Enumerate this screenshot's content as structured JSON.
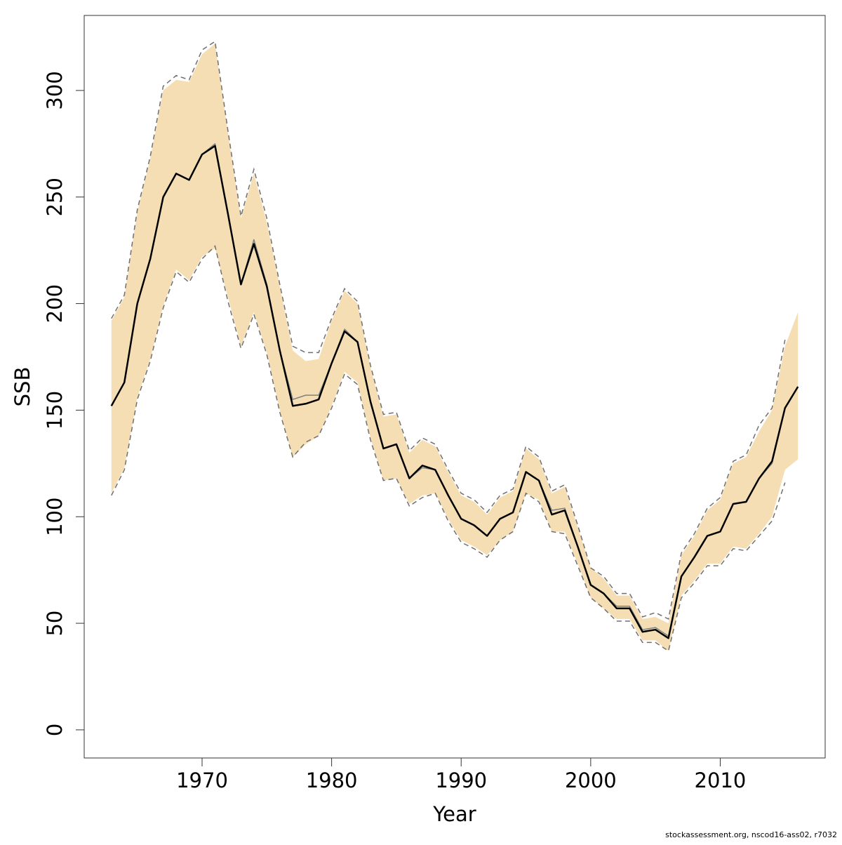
{
  "chart_data": {
    "type": "line",
    "xlabel": "Year",
    "ylabel": "SSB",
    "footer": "stockassessment.org, nscod16-ass02, r7032",
    "x": [
      1963,
      1964,
      1965,
      1966,
      1967,
      1968,
      1969,
      1970,
      1971,
      1972,
      1973,
      1974,
      1975,
      1976,
      1977,
      1978,
      1979,
      1980,
      1981,
      1982,
      1983,
      1984,
      1985,
      1986,
      1987,
      1988,
      1989,
      1990,
      1991,
      1992,
      1993,
      1994,
      1995,
      1996,
      1997,
      1998,
      1999,
      2000,
      2001,
      2002,
      2003,
      2004,
      2005,
      2006,
      2007,
      2008,
      2009,
      2010,
      2011,
      2012,
      2013,
      2014,
      2015,
      2016
    ],
    "interval": {
      "color": "#f5deb3",
      "upper": [
        192,
        203,
        243,
        268,
        300,
        305,
        304,
        317,
        322,
        280,
        240,
        261,
        238,
        208,
        178,
        173,
        174,
        192,
        206,
        200,
        170,
        147,
        148,
        130,
        136,
        133,
        121,
        110,
        107,
        101,
        109,
        112,
        132,
        127,
        111,
        114,
        95,
        76,
        71,
        63,
        63,
        52,
        53,
        50,
        82,
        91,
        103,
        108,
        125,
        128,
        140,
        150,
        180,
        196
      ],
      "lower": [
        111,
        123,
        156,
        174,
        199,
        216,
        211,
        222,
        226,
        203,
        180,
        196,
        177,
        150,
        128,
        134,
        138,
        152,
        168,
        163,
        137,
        117,
        118,
        106,
        110,
        111,
        99,
        89,
        86,
        82,
        89,
        93,
        111,
        108,
        93,
        93,
        78,
        62,
        57,
        52,
        52,
        42,
        42,
        37,
        63,
        70,
        78,
        78,
        86,
        85,
        92,
        100,
        122,
        127
      ]
    },
    "previous_interval": {
      "color": "#707070",
      "dash": true,
      "upper": [
        193,
        204,
        244,
        269,
        302,
        307,
        305,
        319,
        323,
        281,
        241,
        263,
        240,
        209,
        180,
        177,
        177,
        193,
        207,
        201,
        171,
        148,
        149,
        131,
        137,
        134,
        122,
        111,
        108,
        102,
        110,
        113,
        133,
        128,
        112,
        115,
        96,
        76,
        72,
        64,
        64,
        53,
        55,
        52,
        83,
        92,
        104,
        109,
        126,
        129,
        143,
        151,
        183,
        null
      ],
      "lower": [
        110,
        122,
        155,
        173,
        198,
        215,
        210,
        221,
        227,
        201,
        179,
        195,
        176,
        149,
        128,
        135,
        138,
        151,
        167,
        162,
        136,
        117,
        118,
        105,
        109,
        111,
        98,
        88,
        85,
        81,
        89,
        93,
        111,
        107,
        93,
        92,
        77,
        62,
        57,
        51,
        51,
        41,
        41,
        37,
        62,
        69,
        77,
        77,
        85,
        84,
        91,
        98,
        116,
        null
      ]
    },
    "series": [
      {
        "color": "#808080",
        "width": 1.5,
        "values": [
          152,
          163,
          200,
          221,
          250,
          261,
          258,
          270,
          275,
          242,
          209,
          230,
          209,
          178,
          155,
          157,
          157,
          172,
          188,
          182,
          154,
          132,
          134,
          118,
          123,
          122,
          110,
          99,
          96,
          91,
          99,
          102,
          121,
          117,
          103,
          104,
          86,
          68,
          64,
          58,
          58,
          47,
          48,
          44,
          72,
          81,
          91,
          93,
          106,
          107,
          118,
          125,
          151,
          null
        ]
      },
      {
        "color": "#000000",
        "width": 2.5,
        "values": [
          152,
          163,
          200,
          221,
          250,
          261,
          258,
          270,
          274,
          242,
          209,
          228,
          208,
          178,
          152,
          153,
          155,
          172,
          187,
          182,
          154,
          132,
          134,
          118,
          124,
          122,
          110,
          99,
          96,
          91,
          99,
          102,
          121,
          117,
          101,
          103,
          86,
          68,
          64,
          57,
          57,
          46,
          47,
          43,
          72,
          81,
          91,
          93,
          106,
          107,
          118,
          126,
          151,
          161
        ]
      }
    ],
    "xlim": [
      1960.9,
      2018.1
    ],
    "ylim": [
      -13.2,
      335.2
    ],
    "xticks": [
      1970,
      1980,
      1990,
      2000,
      2010
    ],
    "yticks": [
      0,
      50,
      100,
      150,
      200,
      250,
      300
    ]
  }
}
